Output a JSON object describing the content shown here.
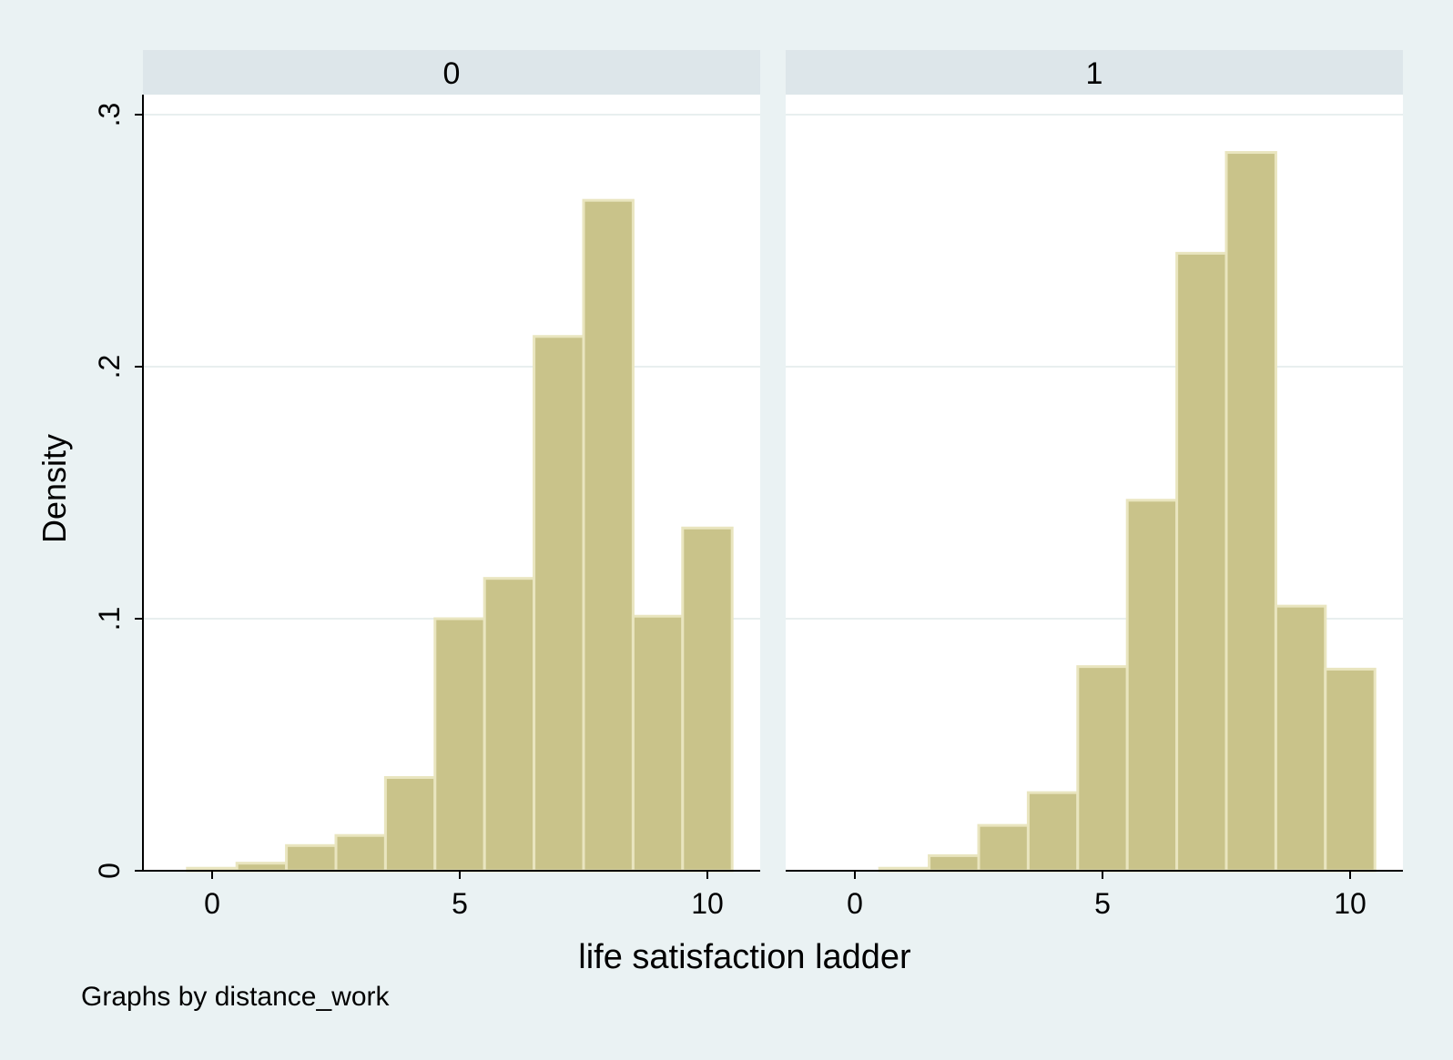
{
  "chart_data": {
    "type": "bar",
    "chart_kind": "histogram",
    "ylabel": "Density",
    "xlabel": "life satisfaction ladder",
    "note": "Graphs by distance_work",
    "xlim": [
      -1.4,
      10.9
    ],
    "ylim": [
      0,
      0.3
    ],
    "x_ticks": [
      0,
      5,
      10
    ],
    "x_tick_labels": [
      "0",
      "5",
      "10"
    ],
    "y_ticks": [
      0,
      0.1,
      0.2,
      0.3
    ],
    "y_tick_labels": [
      "0",
      ".1",
      ".2",
      ".3"
    ],
    "grid": true,
    "bin_width": 1,
    "categories": [
      0,
      1,
      2,
      3,
      4,
      5,
      6,
      7,
      8,
      9,
      10
    ],
    "panels": [
      {
        "title": "0",
        "values": [
          0.001,
          0.003,
          0.01,
          0.014,
          0.037,
          0.1,
          0.116,
          0.212,
          0.266,
          0.101,
          0.136
        ]
      },
      {
        "title": "1",
        "values": [
          0.0,
          0.001,
          0.006,
          0.018,
          0.031,
          0.081,
          0.147,
          0.245,
          0.285,
          0.105,
          0.08
        ]
      }
    ],
    "colors": {
      "background": "#eaf2f3",
      "plot_area": "#ffffff",
      "strip": "#dde6ea",
      "bar_fill": "#c9c38a",
      "bar_stroke": "#e9e5bf",
      "grid": "#e8efef",
      "axis": "#000000"
    }
  }
}
